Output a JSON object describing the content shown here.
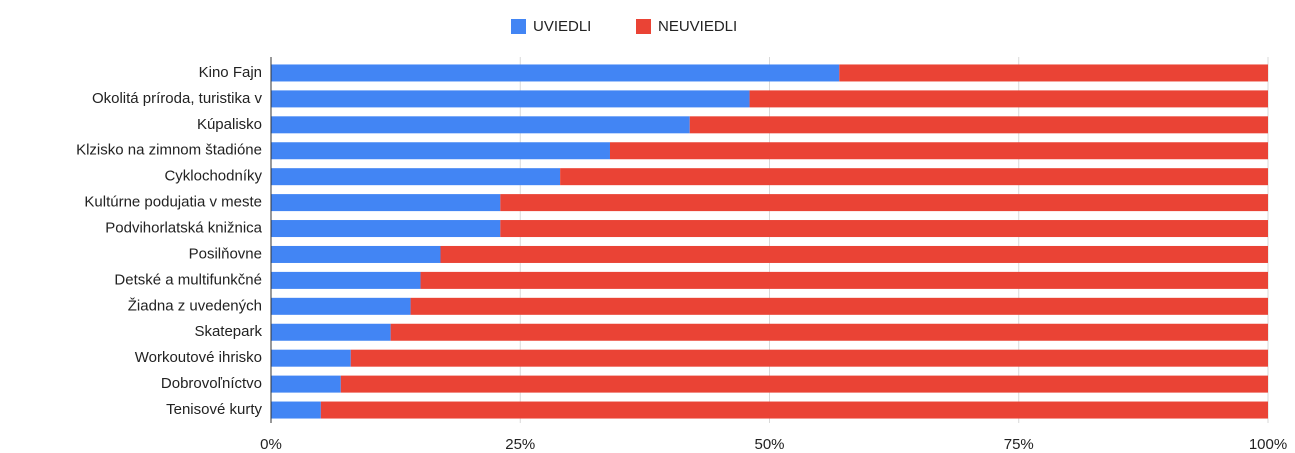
{
  "chart_data": {
    "type": "bar",
    "orientation": "horizontal",
    "stacked": true,
    "categories": [
      "Kino Fajn",
      "Okolitá príroda, turistika v",
      "Kúpalisko",
      "Klzisko na zimnom štadióne",
      "Cyklochodníky",
      "Kultúrne podujatia v meste",
      "Podvihorlatská knižnica",
      "Posilňovne",
      "Detské a multifunkčné",
      "Žiadna z uvedených",
      "Skatepark",
      "Workoutové ihrisko",
      "Dobrovoľníctvo",
      "Tenisové kurty"
    ],
    "series": [
      {
        "name": "UVIEDLI",
        "color": "#4285f4",
        "values": [
          57,
          48,
          42,
          34,
          29,
          23,
          23,
          17,
          15,
          14,
          12,
          8,
          7,
          5
        ]
      },
      {
        "name": "NEUVIEDLI",
        "color": "#ea4335",
        "values": [
          43,
          52,
          58,
          66,
          71,
          77,
          77,
          83,
          85,
          86,
          88,
          92,
          93,
          95
        ]
      }
    ],
    "xlim": [
      0,
      100
    ],
    "xticks": [
      {
        "value": 0,
        "label": "0%"
      },
      {
        "value": 25,
        "label": "25%"
      },
      {
        "value": 50,
        "label": "50%"
      },
      {
        "value": 75,
        "label": "75%"
      },
      {
        "value": 100,
        "label": "100%"
      }
    ],
    "grid": true,
    "legend": "top"
  }
}
